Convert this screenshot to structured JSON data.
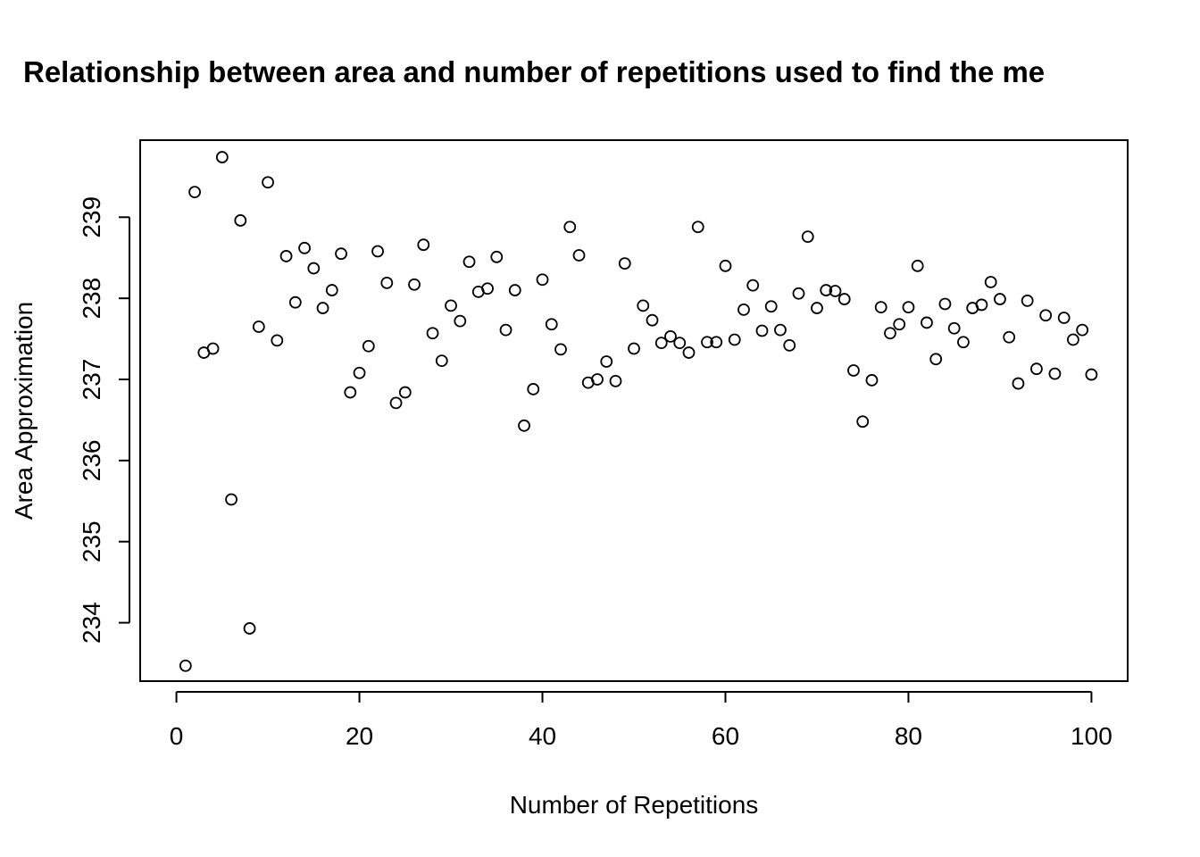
{
  "chart_data": {
    "type": "scatter",
    "title": "Relationship between area and number of repetitions used to find the me",
    "xlabel": "Number of Repetitions",
    "ylabel": "Area Approximation",
    "xlim": [
      -3.96,
      103.96
    ],
    "ylim": [
      233.28,
      239.95
    ],
    "xticks": [
      "0",
      "20",
      "40",
      "60",
      "80",
      "100"
    ],
    "yticks": [
      "234",
      "235",
      "236",
      "237",
      "238",
      "239"
    ],
    "marker": "open-circle",
    "grid": false,
    "legend": "none",
    "points": [
      {
        "x": 1,
        "y": 233.47
      },
      {
        "x": 2,
        "y": 239.31
      },
      {
        "x": 3,
        "y": 237.33
      },
      {
        "x": 4,
        "y": 237.38
      },
      {
        "x": 5,
        "y": 239.74
      },
      {
        "x": 6,
        "y": 235.52
      },
      {
        "x": 7,
        "y": 238.96
      },
      {
        "x": 8,
        "y": 233.93
      },
      {
        "x": 9,
        "y": 237.65
      },
      {
        "x": 10,
        "y": 239.43
      },
      {
        "x": 11,
        "y": 237.48
      },
      {
        "x": 12,
        "y": 238.52
      },
      {
        "x": 13,
        "y": 237.95
      },
      {
        "x": 14,
        "y": 238.62
      },
      {
        "x": 15,
        "y": 238.37
      },
      {
        "x": 16,
        "y": 237.88
      },
      {
        "x": 17,
        "y": 238.1
      },
      {
        "x": 18,
        "y": 238.55
      },
      {
        "x": 19,
        "y": 236.84
      },
      {
        "x": 20,
        "y": 237.08
      },
      {
        "x": 21,
        "y": 237.41
      },
      {
        "x": 22,
        "y": 238.58
      },
      {
        "x": 23,
        "y": 238.19
      },
      {
        "x": 24,
        "y": 236.71
      },
      {
        "x": 25,
        "y": 236.84
      },
      {
        "x": 26,
        "y": 238.17
      },
      {
        "x": 27,
        "y": 238.66
      },
      {
        "x": 28,
        "y": 237.57
      },
      {
        "x": 29,
        "y": 237.23
      },
      {
        "x": 30,
        "y": 237.91
      },
      {
        "x": 31,
        "y": 237.72
      },
      {
        "x": 32,
        "y": 238.45
      },
      {
        "x": 33,
        "y": 238.08
      },
      {
        "x": 34,
        "y": 238.12
      },
      {
        "x": 35,
        "y": 238.51
      },
      {
        "x": 36,
        "y": 237.61
      },
      {
        "x": 37,
        "y": 238.1
      },
      {
        "x": 38,
        "y": 236.43
      },
      {
        "x": 39,
        "y": 236.88
      },
      {
        "x": 40,
        "y": 238.23
      },
      {
        "x": 41,
        "y": 237.68
      },
      {
        "x": 42,
        "y": 237.37
      },
      {
        "x": 43,
        "y": 238.88
      },
      {
        "x": 44,
        "y": 238.53
      },
      {
        "x": 45,
        "y": 236.96
      },
      {
        "x": 46,
        "y": 237.0
      },
      {
        "x": 47,
        "y": 237.22
      },
      {
        "x": 48,
        "y": 236.98
      },
      {
        "x": 49,
        "y": 238.43
      },
      {
        "x": 50,
        "y": 237.38
      },
      {
        "x": 51,
        "y": 237.91
      },
      {
        "x": 52,
        "y": 237.73
      },
      {
        "x": 53,
        "y": 237.45
      },
      {
        "x": 54,
        "y": 237.53
      },
      {
        "x": 55,
        "y": 237.45
      },
      {
        "x": 56,
        "y": 237.33
      },
      {
        "x": 57,
        "y": 238.88
      },
      {
        "x": 58,
        "y": 237.46
      },
      {
        "x": 59,
        "y": 237.46
      },
      {
        "x": 60,
        "y": 238.4
      },
      {
        "x": 61,
        "y": 237.49
      },
      {
        "x": 62,
        "y": 237.86
      },
      {
        "x": 63,
        "y": 238.16
      },
      {
        "x": 64,
        "y": 237.6
      },
      {
        "x": 65,
        "y": 237.9
      },
      {
        "x": 66,
        "y": 237.61
      },
      {
        "x": 67,
        "y": 237.42
      },
      {
        "x": 68,
        "y": 238.06
      },
      {
        "x": 69,
        "y": 238.76
      },
      {
        "x": 70,
        "y": 237.88
      },
      {
        "x": 71,
        "y": 238.1
      },
      {
        "x": 72,
        "y": 238.09
      },
      {
        "x": 73,
        "y": 237.99
      },
      {
        "x": 74,
        "y": 237.11
      },
      {
        "x": 75,
        "y": 236.48
      },
      {
        "x": 76,
        "y": 236.99
      },
      {
        "x": 77,
        "y": 237.89
      },
      {
        "x": 78,
        "y": 237.57
      },
      {
        "x": 79,
        "y": 237.68
      },
      {
        "x": 80,
        "y": 237.89
      },
      {
        "x": 81,
        "y": 238.4
      },
      {
        "x": 82,
        "y": 237.7
      },
      {
        "x": 83,
        "y": 237.25
      },
      {
        "x": 84,
        "y": 237.93
      },
      {
        "x": 85,
        "y": 237.63
      },
      {
        "x": 86,
        "y": 237.46
      },
      {
        "x": 87,
        "y": 237.88
      },
      {
        "x": 88,
        "y": 237.92
      },
      {
        "x": 89,
        "y": 238.2
      },
      {
        "x": 90,
        "y": 237.99
      },
      {
        "x": 91,
        "y": 237.52
      },
      {
        "x": 92,
        "y": 236.95
      },
      {
        "x": 93,
        "y": 237.97
      },
      {
        "x": 94,
        "y": 237.13
      },
      {
        "x": 95,
        "y": 237.79
      },
      {
        "x": 96,
        "y": 237.07
      },
      {
        "x": 97,
        "y": 237.76
      },
      {
        "x": 98,
        "y": 237.49
      },
      {
        "x": 99,
        "y": 237.61
      },
      {
        "x": 100,
        "y": 237.06
      }
    ]
  }
}
